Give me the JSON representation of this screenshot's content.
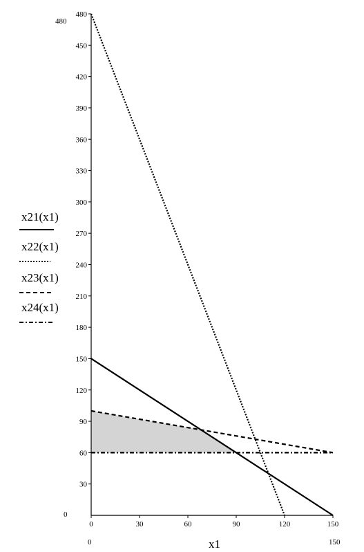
{
  "chart_data": {
    "type": "line",
    "xlabel": "x1",
    "xlim": [
      0,
      150
    ],
    "ylim": [
      0,
      480
    ],
    "x_ticks": [
      0,
      30,
      60,
      90,
      120,
      150
    ],
    "y_ticks": [
      30,
      60,
      90,
      120,
      150,
      180,
      210,
      240,
      270,
      300,
      330,
      360,
      390,
      420,
      450,
      480
    ],
    "x_ticks_text": [
      "0",
      "30",
      "60",
      "90",
      "120",
      "150"
    ],
    "y_ticks_text": [
      "30",
      "60",
      "90",
      "120",
      "150",
      "180",
      "210",
      "240",
      "270",
      "300",
      "330",
      "360",
      "390",
      "420",
      "450",
      "480"
    ],
    "y_min_label": "0",
    "y_max_label": "480",
    "x_min_label": "0",
    "x_max_label": "150",
    "grid": false,
    "legend_position": "left",
    "series": [
      {
        "name": "x21(x1)",
        "style": "solid",
        "x": [
          0,
          150
        ],
        "y": [
          150,
          0
        ]
      },
      {
        "name": "x22(x1)",
        "style": "dotted",
        "x": [
          0,
          120
        ],
        "y": [
          480,
          0
        ]
      },
      {
        "name": "x23(x1)",
        "style": "dashed",
        "x": [
          0,
          150
        ],
        "y": [
          100,
          60
        ]
      },
      {
        "name": "x24(x1)",
        "style": "dashdot",
        "x": [
          0,
          150
        ],
        "y": [
          60,
          60
        ]
      }
    ],
    "shaded_region": {
      "color": "#d4d4d4",
      "x": [
        0,
        69.2,
        90,
        0
      ],
      "y": [
        100,
        81.5,
        60,
        60
      ]
    }
  }
}
